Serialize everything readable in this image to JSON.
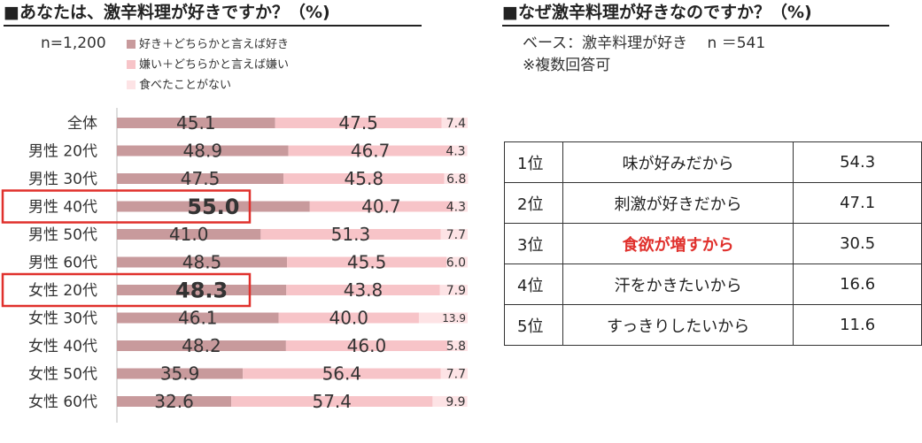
{
  "left": {
    "title": "■あなたは、激辛料理が好きですか？（%)",
    "sample": "n=1,200",
    "legend": [
      {
        "label": "好き＋どちらかと言えば好き",
        "color": "#c89a9c"
      },
      {
        "label": "嫌い＋どちらかと言えば嫌い",
        "color": "#f7c4c8"
      },
      {
        "label": "食べたことがない",
        "color": "#fde3e5"
      }
    ]
  },
  "chart_data": {
    "type": "bar",
    "stacked": true,
    "orientation": "horizontal",
    "xlim": [
      0,
      100
    ],
    "categories": [
      "全体",
      "男性 20代",
      "男性 30代",
      "男性 40代",
      "男性 50代",
      "男性 60代",
      "女性 20代",
      "女性 30代",
      "女性 40代",
      "女性 50代",
      "女性 60代"
    ],
    "series": [
      {
        "name": "好き＋どちらかと言えば好き",
        "values": [
          45.1,
          48.9,
          47.5,
          55.0,
          41.0,
          48.5,
          48.3,
          46.1,
          48.2,
          35.9,
          32.6
        ]
      },
      {
        "name": "嫌い＋どちらかと言えば嫌い",
        "values": [
          47.5,
          46.7,
          45.8,
          40.7,
          51.3,
          45.5,
          43.8,
          40.0,
          46.0,
          56.4,
          57.4
        ]
      },
      {
        "name": "食べたことがない",
        "values": [
          7.4,
          4.3,
          6.8,
          4.3,
          7.7,
          6.0,
          7.9,
          13.9,
          5.8,
          7.7,
          9.9
        ]
      }
    ],
    "labels": [
      [
        "45.1",
        "47.5",
        "7.4"
      ],
      [
        "48.9",
        "46.7",
        "4.3"
      ],
      [
        "47.5",
        "45.8",
        "6.8"
      ],
      [
        "55.0",
        "40.7",
        "4.3"
      ],
      [
        "41.0",
        "51.3",
        "7.7"
      ],
      [
        "48.5",
        "45.5",
        "6.0"
      ],
      [
        "48.3",
        "43.8",
        "7.9"
      ],
      [
        "46.1",
        "40.0",
        "13.9"
      ],
      [
        "48.2",
        "46.0",
        "5.8"
      ],
      [
        "35.9",
        "56.4",
        "7.7"
      ],
      [
        "32.6",
        "57.4",
        "9.9"
      ]
    ],
    "highlighted": [
      "男性 40代",
      "女性 20代"
    ],
    "highlight_color": "#e0302c",
    "colors": [
      "#c89a9c",
      "#f7c4c8",
      "#fde3e5"
    ]
  },
  "right": {
    "title": "■なぜ激辛料理が好きなのですか？（%)",
    "base": "ベース：激辛料理が好き　 n ＝541",
    "note": "※複数回答可",
    "ranking": [
      {
        "rank": "1位",
        "reason": "味が好みだから",
        "value": "54.3"
      },
      {
        "rank": "2位",
        "reason": "刺激が好きだから",
        "value": "47.1"
      },
      {
        "rank": "3位",
        "reason": "食欲が増すから",
        "value": "30.5",
        "highlight": true
      },
      {
        "rank": "4位",
        "reason": "汗をかきたいから",
        "value": "16.6"
      },
      {
        "rank": "5位",
        "reason": "すっきりしたいから",
        "value": "11.6"
      }
    ],
    "highlight_color": "#e0302c"
  }
}
